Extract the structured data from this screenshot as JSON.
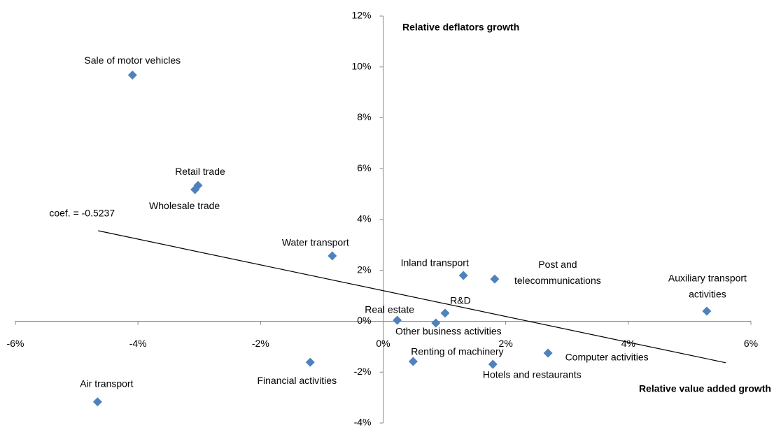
{
  "chart_data": {
    "type": "scatter",
    "y_axis_title": "Relative deflators growth",
    "x_axis_title": "Relative value added growth",
    "xlim": [
      -6,
      6
    ],
    "ylim": [
      -4,
      12
    ],
    "xticks": [
      {
        "value": -6,
        "label": "-6%"
      },
      {
        "value": -4,
        "label": "-4%"
      },
      {
        "value": -2,
        "label": "-2%"
      },
      {
        "value": 0,
        "label": "0%"
      },
      {
        "value": 2,
        "label": "2%"
      },
      {
        "value": 4,
        "label": "4%"
      },
      {
        "value": 6,
        "label": "6%"
      }
    ],
    "yticks": [
      {
        "value": -4,
        "label": "-4%"
      },
      {
        "value": -2,
        "label": "-2%"
      },
      {
        "value": 0,
        "label": "0%"
      },
      {
        "value": 2,
        "label": "2%"
      },
      {
        "value": 4,
        "label": "4%"
      },
      {
        "value": 6,
        "label": "6%"
      },
      {
        "value": 8,
        "label": "8%"
      },
      {
        "value": 10,
        "label": "10%"
      },
      {
        "value": 12,
        "label": "12%"
      }
    ],
    "color": "#4f81bd",
    "x": [
      -4.09,
      -3.02,
      -3.07,
      -0.83,
      1.31,
      1.82,
      5.28,
      1.01,
      0.23,
      0.86,
      0.49,
      1.79,
      2.69,
      -1.19,
      -4.66
    ],
    "values": [
      9.68,
      5.34,
      5.18,
      2.57,
      1.8,
      1.66,
      0.4,
      0.32,
      0.04,
      -0.07,
      -1.58,
      -1.69,
      -1.25,
      -1.61,
      -3.17
    ],
    "labels": [
      "Sale of motor  vehicles",
      "Retail trade",
      "Wholesale trade",
      "Water transport",
      "Inland transport",
      [
        "Post and",
        "telecommunications"
      ],
      [
        "Auxiliary transport",
        "activities"
      ],
      "R&D",
      "Real estate",
      "Other business activities",
      "Renting of machinery",
      "Hotels and restaurants",
      "Computer activities",
      "Financial activities",
      "Air transport"
    ],
    "trendline": {
      "label": "coef. = -0.5237",
      "color": "#000000",
      "x": [
        -4.65,
        5.59
      ],
      "values": [
        3.56,
        -1.63
      ]
    }
  }
}
